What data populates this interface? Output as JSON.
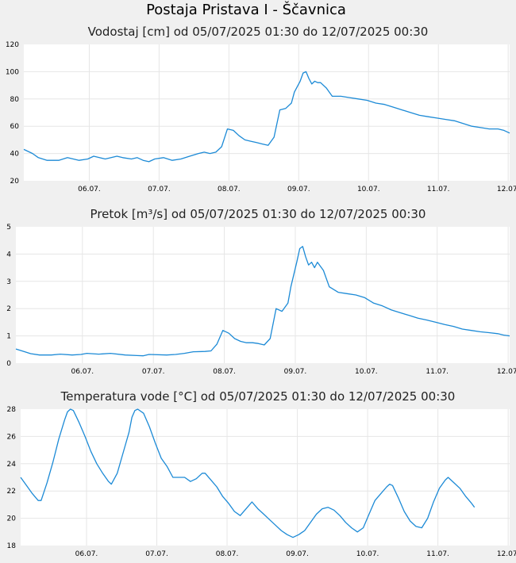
{
  "page": {
    "title": "Postaja Pristava I - Ščavnica"
  },
  "colors": {
    "line": "#1c8ad6",
    "grid": "#e6e6e6",
    "plot_bg": "#ffffff",
    "page_bg": "#f0f0f0"
  },
  "chart_data": [
    {
      "type": "line",
      "title": "Vodostaj [cm] od 05/07/2025 01:30 do 12/07/2025 00:30",
      "xlabel": "",
      "ylabel": "",
      "ylim": [
        20,
        120
      ],
      "yticks": [
        20,
        40,
        60,
        80,
        100,
        120
      ],
      "xlim": [
        0,
        167
      ],
      "xticks": [
        {
          "t": 22.5,
          "label": "06.07."
        },
        {
          "t": 46.5,
          "label": "07.07."
        },
        {
          "t": 70.5,
          "label": "08.07."
        },
        {
          "t": 94.5,
          "label": "09.07."
        },
        {
          "t": 118.5,
          "label": "10.07."
        },
        {
          "t": 142.5,
          "label": "11.07."
        },
        {
          "t": 166.5,
          "label": "12.07."
        }
      ],
      "grid": true,
      "series": [
        {
          "values": [
            [
              0,
              43
            ],
            [
              3,
              40
            ],
            [
              5,
              37
            ],
            [
              8,
              35
            ],
            [
              12,
              35
            ],
            [
              15,
              37
            ],
            [
              17,
              36
            ],
            [
              19,
              35
            ],
            [
              22,
              36
            ],
            [
              24,
              38
            ],
            [
              26,
              37
            ],
            [
              28,
              36
            ],
            [
              30,
              37
            ],
            [
              32,
              38
            ],
            [
              34,
              37
            ],
            [
              37,
              36
            ],
            [
              39,
              37
            ],
            [
              41,
              35
            ],
            [
              43,
              34
            ],
            [
              45,
              36
            ],
            [
              48,
              37
            ],
            [
              51,
              35
            ],
            [
              54,
              36
            ],
            [
              57,
              38
            ],
            [
              60,
              40
            ],
            [
              62,
              41
            ],
            [
              64,
              40
            ],
            [
              66,
              41
            ],
            [
              68,
              45
            ],
            [
              70,
              58
            ],
            [
              72,
              57
            ],
            [
              74,
              53
            ],
            [
              76,
              50
            ],
            [
              78,
              49
            ],
            [
              80,
              48
            ],
            [
              82,
              47
            ],
            [
              84,
              46
            ],
            [
              86,
              52
            ],
            [
              88,
              72
            ],
            [
              90,
              73
            ],
            [
              92,
              77
            ],
            [
              93,
              85
            ],
            [
              95,
              93
            ],
            [
              96,
              99
            ],
            [
              97,
              100
            ],
            [
              98,
              95
            ],
            [
              99,
              91
            ],
            [
              100,
              93
            ],
            [
              101,
              92
            ],
            [
              102,
              92
            ],
            [
              104,
              88
            ],
            [
              106,
              82
            ],
            [
              109,
              82
            ],
            [
              112,
              81
            ],
            [
              115,
              80
            ],
            [
              118,
              79
            ],
            [
              121,
              77
            ],
            [
              124,
              76
            ],
            [
              127,
              74
            ],
            [
              130,
              72
            ],
            [
              133,
              70
            ],
            [
              136,
              68
            ],
            [
              139,
              67
            ],
            [
              142,
              66
            ],
            [
              145,
              65
            ],
            [
              148,
              64
            ],
            [
              151,
              62
            ],
            [
              154,
              60
            ],
            [
              157,
              59
            ],
            [
              160,
              58
            ],
            [
              163,
              58
            ],
            [
              165,
              57
            ],
            [
              167,
              55
            ]
          ]
        }
      ]
    },
    {
      "type": "line",
      "title": "Pretok [m³/s] od 05/07/2025 01:30 do 12/07/2025 00:30",
      "xlabel": "",
      "ylabel": "",
      "ylim": [
        0,
        5
      ],
      "yticks": [
        0,
        1,
        2,
        3,
        4,
        5
      ],
      "xlim": [
        0,
        167
      ],
      "xticks": [
        {
          "t": 22.5,
          "label": "06.07."
        },
        {
          "t": 46.5,
          "label": "07.07."
        },
        {
          "t": 70.5,
          "label": "08.07."
        },
        {
          "t": 94.5,
          "label": "09.07."
        },
        {
          "t": 118.5,
          "label": "10.07."
        },
        {
          "t": 142.5,
          "label": "11.07."
        },
        {
          "t": 166.5,
          "label": "12.07."
        }
      ],
      "grid": true,
      "series": [
        {
          "values": [
            [
              0,
              0.52
            ],
            [
              3,
              0.42
            ],
            [
              5,
              0.35
            ],
            [
              8,
              0.3
            ],
            [
              12,
              0.3
            ],
            [
              15,
              0.33
            ],
            [
              19,
              0.3
            ],
            [
              22,
              0.32
            ],
            [
              24,
              0.36
            ],
            [
              28,
              0.33
            ],
            [
              32,
              0.36
            ],
            [
              37,
              0.3
            ],
            [
              41,
              0.28
            ],
            [
              43,
              0.27
            ],
            [
              45,
              0.32
            ],
            [
              51,
              0.3
            ],
            [
              54,
              0.32
            ],
            [
              57,
              0.36
            ],
            [
              60,
              0.42
            ],
            [
              64,
              0.43
            ],
            [
              66,
              0.45
            ],
            [
              68,
              0.7
            ],
            [
              70,
              1.2
            ],
            [
              72,
              1.1
            ],
            [
              74,
              0.9
            ],
            [
              76,
              0.8
            ],
            [
              78,
              0.75
            ],
            [
              80,
              0.75
            ],
            [
              82,
              0.72
            ],
            [
              84,
              0.67
            ],
            [
              86,
              0.9
            ],
            [
              88,
              2.0
            ],
            [
              90,
              1.9
            ],
            [
              92,
              2.2
            ],
            [
              93,
              2.8
            ],
            [
              95,
              3.7
            ],
            [
              96,
              4.2
            ],
            [
              97,
              4.28
            ],
            [
              98,
              3.9
            ],
            [
              99,
              3.6
            ],
            [
              100,
              3.7
            ],
            [
              101,
              3.5
            ],
            [
              102,
              3.7
            ],
            [
              104,
              3.4
            ],
            [
              106,
              2.8
            ],
            [
              109,
              2.6
            ],
            [
              112,
              2.55
            ],
            [
              115,
              2.5
            ],
            [
              118,
              2.4
            ],
            [
              121,
              2.2
            ],
            [
              124,
              2.1
            ],
            [
              127,
              1.95
            ],
            [
              130,
              1.85
            ],
            [
              133,
              1.75
            ],
            [
              136,
              1.65
            ],
            [
              139,
              1.58
            ],
            [
              142,
              1.5
            ],
            [
              145,
              1.42
            ],
            [
              148,
              1.35
            ],
            [
              151,
              1.25
            ],
            [
              154,
              1.2
            ],
            [
              157,
              1.15
            ],
            [
              160,
              1.12
            ],
            [
              163,
              1.08
            ],
            [
              165,
              1.03
            ],
            [
              167,
              1.0
            ]
          ]
        }
      ]
    },
    {
      "type": "line",
      "title": "Temperatura vode [°C] od 05/07/2025 01:30 do 12/07/2025 00:30",
      "xlabel": "",
      "ylabel": "",
      "ylim": [
        18,
        28
      ],
      "yticks": [
        18,
        20,
        22,
        24,
        26,
        28
      ],
      "xlim": [
        0,
        167
      ],
      "xticks": [
        {
          "t": 22.5,
          "label": "06.07."
        },
        {
          "t": 46.5,
          "label": "07.07."
        },
        {
          "t": 70.5,
          "label": "08.07."
        },
        {
          "t": 94.5,
          "label": "09.07."
        },
        {
          "t": 118.5,
          "label": "10.07."
        },
        {
          "t": 142.5,
          "label": "11.07."
        },
        {
          "t": 166.5,
          "label": "12.07."
        }
      ],
      "grid": true,
      "series": [
        {
          "values": [
            [
              0,
              23.0
            ],
            [
              2,
              22.4
            ],
            [
              4,
              21.8
            ],
            [
              6,
              21.3
            ],
            [
              7,
              21.3
            ],
            [
              9,
              22.6
            ],
            [
              11,
              24.1
            ],
            [
              13,
              25.8
            ],
            [
              15,
              27.2
            ],
            [
              16,
              27.8
            ],
            [
              17,
              28.0
            ],
            [
              18,
              27.9
            ],
            [
              20,
              27.0
            ],
            [
              22,
              26.0
            ],
            [
              24,
              24.9
            ],
            [
              26,
              24.0
            ],
            [
              28,
              23.3
            ],
            [
              30,
              22.7
            ],
            [
              31,
              22.5
            ],
            [
              33,
              23.3
            ],
            [
              35,
              24.8
            ],
            [
              37,
              26.3
            ],
            [
              38,
              27.4
            ],
            [
              39,
              27.9
            ],
            [
              40,
              28.0
            ],
            [
              42,
              27.7
            ],
            [
              44,
              26.7
            ],
            [
              46,
              25.5
            ],
            [
              48,
              24.4
            ],
            [
              50,
              23.8
            ],
            [
              52,
              23.0
            ],
            [
              54,
              23.0
            ],
            [
              56,
              23.0
            ],
            [
              58,
              22.7
            ],
            [
              60,
              22.9
            ],
            [
              62,
              23.3
            ],
            [
              63,
              23.3
            ],
            [
              65,
              22.8
            ],
            [
              67,
              22.3
            ],
            [
              69,
              21.6
            ],
            [
              71,
              21.1
            ],
            [
              73,
              20.5
            ],
            [
              75,
              20.2
            ],
            [
              77,
              20.7
            ],
            [
              79,
              21.2
            ],
            [
              81,
              20.7
            ],
            [
              83,
              20.3
            ],
            [
              85,
              19.9
            ],
            [
              87,
              19.5
            ],
            [
              89,
              19.1
            ],
            [
              91,
              18.8
            ],
            [
              93,
              18.6
            ],
            [
              95,
              18.8
            ],
            [
              97,
              19.1
            ],
            [
              99,
              19.7
            ],
            [
              101,
              20.3
            ],
            [
              103,
              20.7
            ],
            [
              105,
              20.8
            ],
            [
              107,
              20.6
            ],
            [
              109,
              20.2
            ],
            [
              111,
              19.7
            ],
            [
              113,
              19.3
            ],
            [
              115,
              19.0
            ],
            [
              117,
              19.3
            ],
            [
              119,
              20.3
            ],
            [
              121,
              21.3
            ],
            [
              123,
              21.8
            ],
            [
              125,
              22.3
            ],
            [
              126,
              22.5
            ],
            [
              127,
              22.4
            ],
            [
              129,
              21.5
            ],
            [
              131,
              20.5
            ],
            [
              133,
              19.8
            ],
            [
              135,
              19.4
            ],
            [
              137,
              19.3
            ],
            [
              139,
              20.0
            ],
            [
              141,
              21.2
            ],
            [
              143,
              22.2
            ],
            [
              145,
              22.8
            ],
            [
              146,
              23.0
            ],
            [
              148,
              22.6
            ],
            [
              150,
              22.2
            ],
            [
              152,
              21.6
            ],
            [
              154,
              21.1
            ],
            [
              155,
              20.8
            ]
          ]
        }
      ]
    }
  ]
}
